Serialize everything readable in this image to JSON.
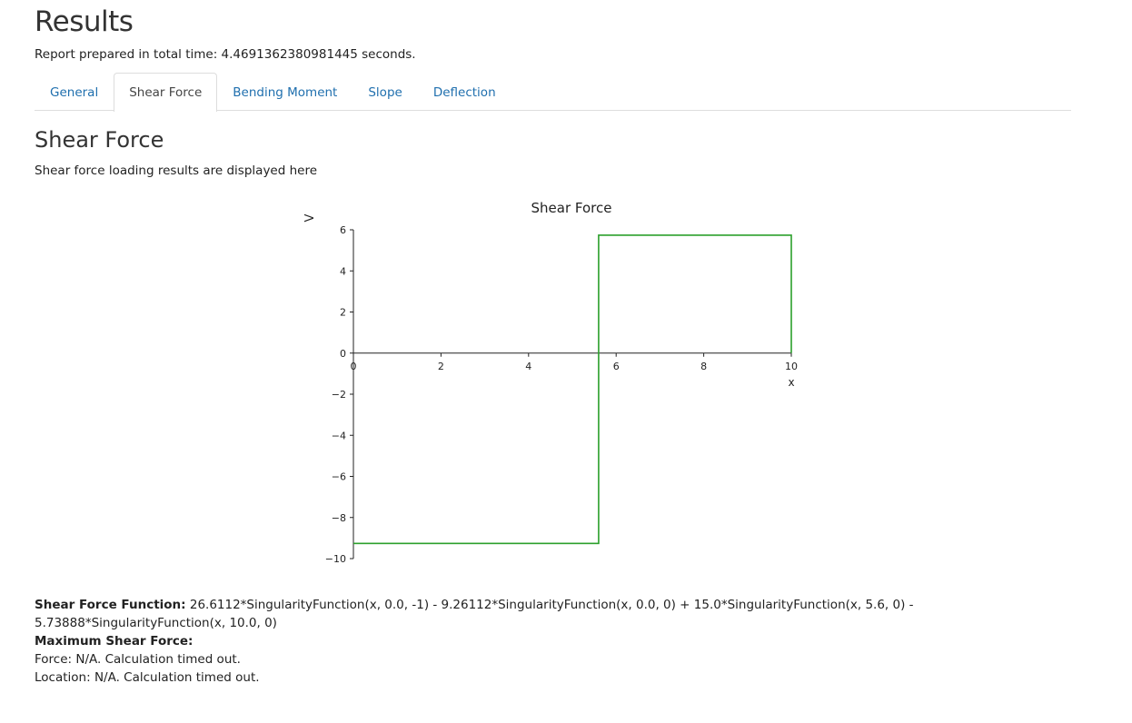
{
  "header": {
    "title": "Results",
    "report_time": "Report prepared in total time: 4.4691362380981445 seconds."
  },
  "tabs": [
    {
      "label": "General",
      "active": false
    },
    {
      "label": "Shear Force",
      "active": true
    },
    {
      "label": "Bending Moment",
      "active": false
    },
    {
      "label": "Slope",
      "active": false
    },
    {
      "label": "Deflection",
      "active": false
    }
  ],
  "section": {
    "title": "Shear Force",
    "description": "Shear force loading results are displayed here"
  },
  "chart_data": {
    "type": "line",
    "title": "Shear Force",
    "xlabel": "x",
    "ylabel": "V",
    "xlim": [
      0,
      10
    ],
    "ylim": [
      -10,
      6
    ],
    "x_ticks": [
      "0",
      "2",
      "4",
      "6",
      "8",
      "10"
    ],
    "y_ticks": [
      "6",
      "4",
      "2",
      "0",
      "−2",
      "−4",
      "−6",
      "−8",
      "−10"
    ],
    "series": [
      {
        "name": "Shear Force",
        "color": "#2ca02c",
        "x": [
          0,
          5.6,
          5.6,
          10,
          10
        ],
        "y": [
          -9.26112,
          -9.26112,
          5.73888,
          5.73888,
          0
        ]
      }
    ]
  },
  "details": {
    "function_label": "Shear Force Function:",
    "function_value": "26.6112*SingularityFunction(x, 0.0, -1) - 9.26112*SingularityFunction(x, 0.0, 0) + 15.0*SingularityFunction(x, 5.6, 0) - 5.73888*SingularityFunction(x, 10.0, 0)",
    "max_label": "Maximum Shear Force:",
    "force_text": "Force: N/A. Calculation timed out.",
    "location_text": "Location: N/A. Calculation timed out."
  }
}
